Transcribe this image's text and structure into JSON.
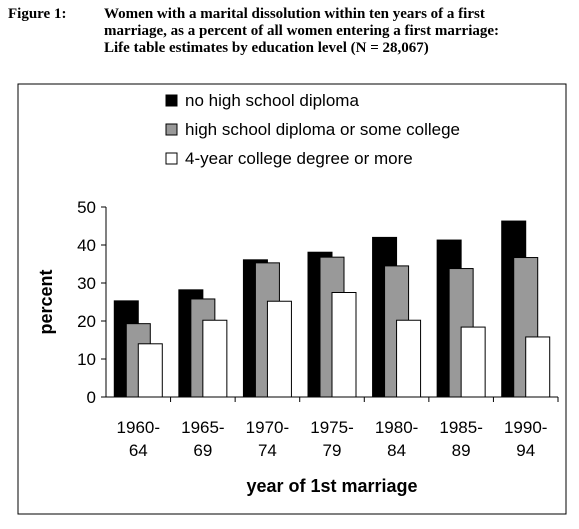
{
  "figure": {
    "label": "Figure 1:",
    "title_lines": [
      "Women with a marital dissolution within ten years of a first",
      "marriage, as a percent of all women entering a first marriage:",
      "Life table estimates by education level (N = 28,067)"
    ]
  },
  "chart_data": {
    "type": "bar",
    "title": "Women with a marital dissolution within ten years of a first marriage, as a percent of all women entering a first marriage: Life table estimates by education level (N = 28,067)",
    "xlabel": "year of 1st marriage",
    "ylabel": "percent",
    "ylim": [
      0,
      50
    ],
    "yticks": [
      0,
      10,
      20,
      30,
      40,
      50
    ],
    "grid": false,
    "legend_position": "top",
    "categories": [
      [
        "1960-",
        "64"
      ],
      [
        "1965-",
        "69"
      ],
      [
        "1970-",
        "74"
      ],
      [
        "1975-",
        "79"
      ],
      [
        "1980-",
        "84"
      ],
      [
        "1985-",
        "89"
      ],
      [
        "1990-",
        "94"
      ]
    ],
    "series": [
      {
        "name": "no high school diploma",
        "color": "#000000",
        "values": [
          25.3,
          28.2,
          36.1,
          38.1,
          42.0,
          41.3,
          46.3
        ]
      },
      {
        "name": "high school diploma or some college",
        "color": "#999999",
        "values": [
          19.3,
          25.8,
          35.3,
          36.8,
          34.5,
          33.8,
          36.7
        ]
      },
      {
        "name": "4-year college degree or more",
        "color": "#ffffff",
        "values": [
          14.0,
          20.2,
          25.2,
          27.5,
          20.2,
          18.4,
          15.8
        ]
      }
    ]
  }
}
